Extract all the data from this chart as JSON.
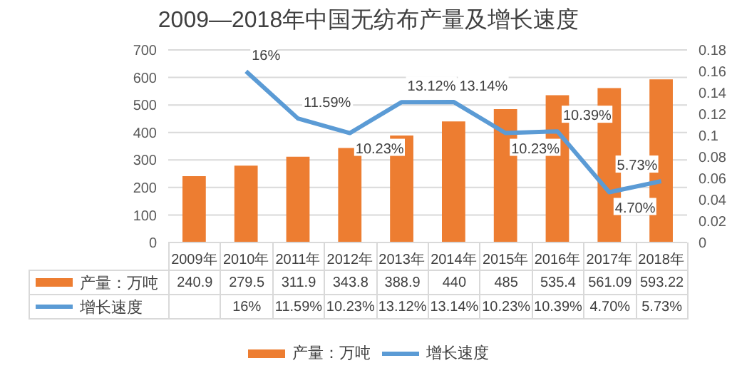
{
  "chart_data": {
    "type": "bar",
    "title": "2009—2018年中国无纺布产量及增长速度",
    "categories": [
      "2009年",
      "2010年",
      "2011年",
      "2012年",
      "2013年",
      "2014年",
      "2015年",
      "2016年",
      "2017年",
      "2018年"
    ],
    "series": [
      {
        "name": "产量：万吨",
        "color": "#ed7d31",
        "values": [
          240.9,
          279.5,
          311.9,
          343.8,
          388.9,
          440,
          485,
          535.4,
          561.09,
          593.22
        ],
        "value_labels": [
          "240.9",
          "279.5",
          "311.9",
          "343.8",
          "388.9",
          "440",
          "485",
          "535.4",
          "561.09",
          "593.22"
        ]
      },
      {
        "name": "增长速度",
        "type": "line",
        "axis": "y2",
        "color": "#5b9bd5",
        "values": [
          null,
          0.16,
          0.1159,
          0.1023,
          0.1312,
          0.1314,
          0.1023,
          0.1039,
          0.047,
          0.0573
        ],
        "value_labels": [
          null,
          "16%",
          "11.59%",
          "10.23%",
          "13.12%",
          "13.14%",
          "10.23%",
          "10.39%",
          "4.70%",
          "5.73%"
        ]
      }
    ],
    "ylim": [
      0,
      700
    ],
    "yticks": [
      0,
      100,
      200,
      300,
      400,
      500,
      600,
      700
    ],
    "y2lim": [
      0,
      0.18
    ],
    "y2ticks": [
      0,
      {
        "value": 0.02,
        "label": "0.02"
      },
      {
        "value": 0.04,
        "label": "0.04"
      },
      {
        "value": 0.06,
        "label": "0.06"
      },
      {
        "value": 0.08,
        "label": "0.08"
      },
      {
        "value": 0.1,
        "label": "0.1"
      },
      {
        "value": 0.12,
        "label": "0.12"
      },
      {
        "value": 0.14,
        "label": "0.14"
      },
      {
        "value": 0.16,
        "label": "0.16"
      },
      {
        "value": 0.18,
        "label": "0.18"
      }
    ],
    "grid": "y",
    "legend": "bottom",
    "marker": "none",
    "line_style": "solid"
  }
}
